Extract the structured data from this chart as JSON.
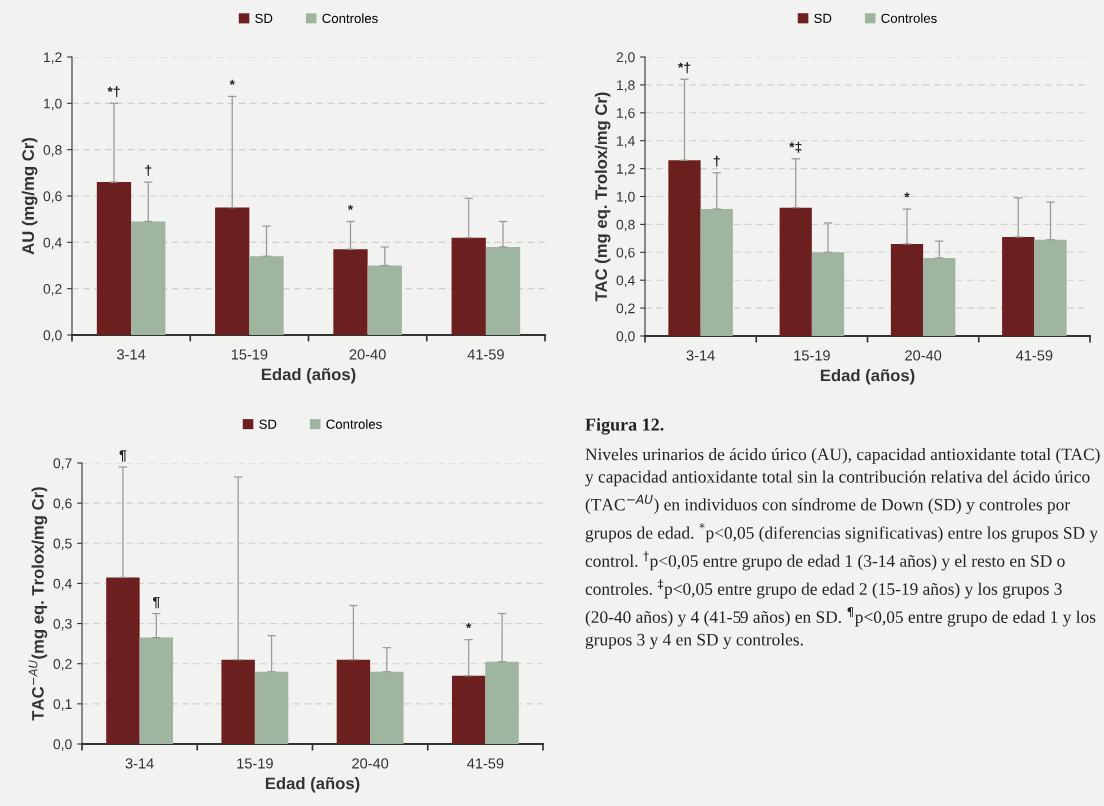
{
  "chart_data": [
    {
      "type": "bar",
      "ylabel": "AU (mg/mg Cr)",
      "xlabel": "Edad (años)",
      "categories": [
        "3-14",
        "15-19",
        "20-40",
        "41-59"
      ],
      "series": [
        {
          "name": "SD",
          "color": "#6b1f1f",
          "values": [
            0.66,
            0.55,
            0.37,
            0.42
          ],
          "errors": [
            [
              0.66,
              1.0
            ],
            [
              0.55,
              1.03
            ],
            [
              0.37,
              0.49
            ],
            [
              0.42,
              0.59
            ]
          ]
        },
        {
          "name": "Controles",
          "color": "#9fb5a0",
          "values": [
            0.49,
            0.34,
            0.3,
            0.38
          ],
          "errors": [
            [
              0.49,
              0.66
            ],
            [
              0.34,
              0.47
            ],
            [
              0.3,
              0.38
            ],
            [
              0.38,
              0.49
            ]
          ]
        }
      ],
      "annotations": [
        "*†",
        "†",
        "*",
        "*"
      ],
      "ylim": [
        0,
        1.2
      ],
      "yticks": [
        {
          "value": 0,
          "label": "0,0"
        },
        {
          "value": 0.2,
          "label": "0,2"
        },
        {
          "value": 0.4,
          "label": "0,4"
        },
        {
          "value": 0.6,
          "label": "0,6"
        },
        {
          "value": 0.8,
          "label": "0,8"
        },
        {
          "value": 1.0,
          "label": "1,0"
        },
        {
          "value": 1.2,
          "label": "1,2"
        }
      ],
      "grid": "y",
      "legend": "top"
    },
    {
      "type": "bar",
      "ylabel": "TAC (mg eq. Trolox/mg Cr)",
      "xlabel": "Edad (años)",
      "categories": [
        "3-14",
        "15-19",
        "20-40",
        "41-59"
      ],
      "series": [
        {
          "name": "SD",
          "color": "#6b1f1f",
          "values": [
            1.26,
            0.92,
            0.66,
            0.71
          ],
          "errors": [
            [
              1.26,
              1.84
            ],
            [
              0.92,
              1.27
            ],
            [
              0.66,
              0.91
            ],
            [
              0.71,
              0.99
            ]
          ]
        },
        {
          "name": "Controles",
          "color": "#9fb5a0",
          "values": [
            0.91,
            0.6,
            0.56,
            0.69
          ],
          "errors": [
            [
              0.91,
              1.17
            ],
            [
              0.6,
              0.81
            ],
            [
              0.56,
              0.68
            ],
            [
              0.69,
              0.96
            ]
          ]
        }
      ],
      "annotations": [
        "*†",
        "†",
        "*‡",
        "*"
      ],
      "ylim": [
        0,
        2.0
      ],
      "yticks": [
        {
          "value": 0,
          "label": "0,0"
        },
        {
          "value": 0.2,
          "label": "0,2"
        },
        {
          "value": 0.4,
          "label": "0,4"
        },
        {
          "value": 0.6,
          "label": "0,6"
        },
        {
          "value": 0.8,
          "label": "0,8"
        },
        {
          "value": 1.0,
          "label": "1,0"
        },
        {
          "value": 1.2,
          "label": "1,2"
        },
        {
          "value": 1.4,
          "label": "1,4"
        },
        {
          "value": 1.6,
          "label": "1,6"
        },
        {
          "value": 1.8,
          "label": "1,8"
        },
        {
          "value": 2.0,
          "label": "2,0"
        }
      ],
      "grid": "y",
      "legend": "top"
    },
    {
      "type": "bar",
      "ylabel": "TAC$^{−AU}$(mg eq. Trolox/mg Cr)",
      "xlabel": "Edad (años)",
      "categories": [
        "3-14",
        "15-19",
        "20-40",
        "41-59"
      ],
      "series": [
        {
          "name": "SD",
          "color": "#6b1f1f",
          "values": [
            0.415,
            0.21,
            0.21,
            0.17
          ],
          "errors": [
            [
              0.415,
              0.69
            ],
            [
              0.21,
              0.665
            ],
            [
              0.21,
              0.345
            ],
            [
              0.17,
              0.26
            ]
          ]
        },
        {
          "name": "Controles",
          "color": "#9fb5a0",
          "values": [
            0.265,
            0.18,
            0.18,
            0.205
          ],
          "errors": [
            [
              0.265,
              0.325
            ],
            [
              0.18,
              0.27
            ],
            [
              0.18,
              0.24
            ],
            [
              0.205,
              0.325
            ]
          ]
        }
      ],
      "annotations": [
        "¶",
        "¶",
        "*"
      ],
      "ylim": [
        0,
        0.7
      ],
      "yticks": [
        {
          "value": 0,
          "label": "0,0"
        },
        {
          "value": 0.1,
          "label": "0,1"
        },
        {
          "value": 0.2,
          "label": "0,2"
        },
        {
          "value": 0.3,
          "label": "0,3"
        },
        {
          "value": 0.4,
          "label": "0,4"
        },
        {
          "value": 0.5,
          "label": "0,5"
        },
        {
          "value": 0.6,
          "label": "0,6"
        },
        {
          "value": 0.7,
          "label": "0,7"
        }
      ],
      "grid": "y",
      "legend": "top"
    },
    {
      "type": "other",
      "title": "Figura 12.",
      "annotations": [
        "Niveles urinarios de ácido úrico (AU), capacidad antioxidante total (TAC) y capacidad antioxidante total sin la contribución relativa del ácido úrico (TAC$^{−AU}$) en individuos con síndrome de Down (SD) y controles por grupos de edad. $^{*}$p<0,05 (diferencias significativas) entre los grupos SD y control. $^{†}$p<0,05 entre grupo de edad 1 (3-14 años) y el resto en SD o controles. $^{‡}$p<0,05 entre grupo de edad 2 (15-19 años) y los grupos 3 (20-40 años) y 4 (41-59 años) en SD. $^{¶}$p<0,05 entre grupo de edad 1 y los grupos 3 y 4 en SD y controles."
      ]
    }
  ]
}
